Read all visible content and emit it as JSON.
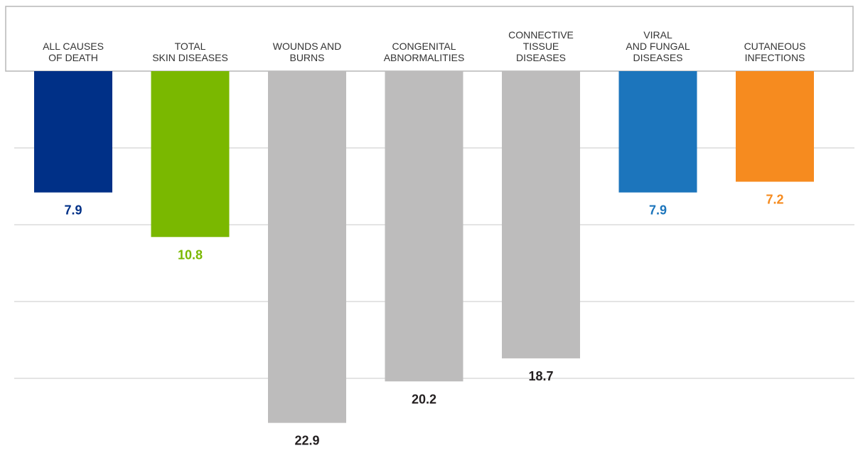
{
  "chart_data": {
    "type": "bar",
    "orientation": "downward",
    "categories": [
      [
        "ALL CAUSES",
        "OF DEATH"
      ],
      [
        "TOTAL",
        "SKIN DISEASES"
      ],
      [
        "WOUNDS AND",
        "BURNS"
      ],
      [
        "CONGENITAL",
        "ABNORMALITIES"
      ],
      [
        "CONNECTIVE",
        "TISSUE",
        "DISEASES"
      ],
      [
        "VIRAL",
        "AND FUNGAL",
        "DISEASES"
      ],
      [
        "CUTANEOUS",
        "INFECTIONS"
      ]
    ],
    "values": [
      7.9,
      10.8,
      22.9,
      20.2,
      18.7,
      7.9,
      7.2
    ],
    "value_labels": [
      "7.9",
      "10.8",
      "22.9",
      "20.2",
      "18.7",
      "7.9",
      "7.2"
    ],
    "colors": [
      "#003087",
      "#7ab800",
      "#bdbcbc",
      "#bdbcbc",
      "#bdbcbc",
      "#1c75bc",
      "#f68b1f"
    ],
    "label_colors": [
      "#003087",
      "#7ab800",
      "#231f20",
      "#231f20",
      "#231f20",
      "#1c75bc",
      "#f68b1f"
    ],
    "ylim": [
      0,
      25
    ],
    "grid": true,
    "gridlines": [
      5,
      10,
      15,
      20
    ],
    "title": "",
    "xlabel": "",
    "ylabel": ""
  }
}
